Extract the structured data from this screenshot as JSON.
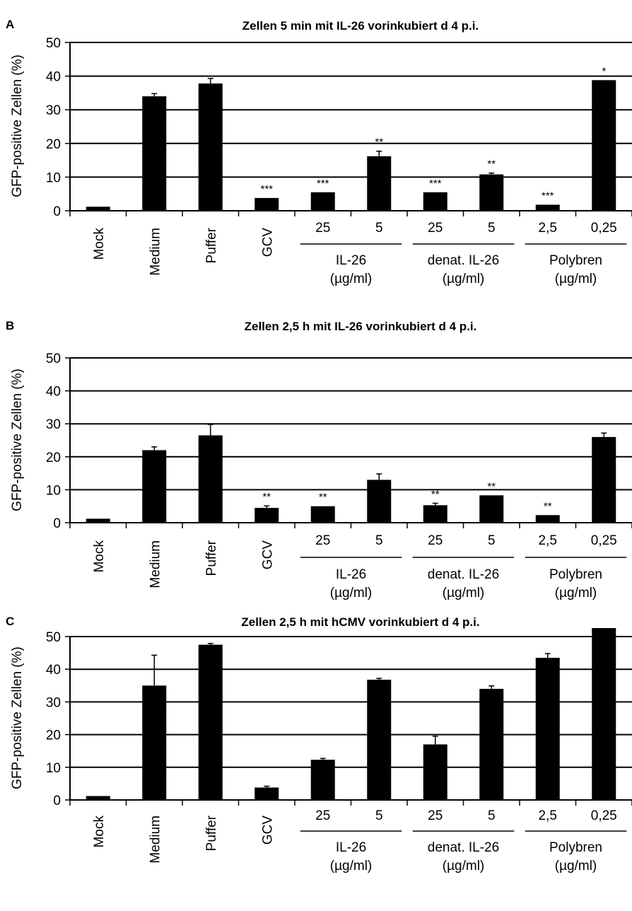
{
  "chart_data": [
    {
      "type": "bar",
      "panel_label": "A",
      "title": "Zellen 5 min mit IL-26 vorinkubiert d 4 p.i.",
      "ylabel": "GFP-positive Zellen (%)",
      "ylim": [
        0,
        50
      ],
      "yticks": [
        0,
        10,
        20,
        30,
        40,
        50
      ],
      "grid": true,
      "categories": [
        "Mock",
        "Medium",
        "Puffer",
        "GCV",
        "25",
        "5",
        "25",
        "5",
        "2,5",
        "0,25"
      ],
      "values": [
        1.2,
        34.0,
        37.8,
        3.8,
        5.5,
        16.2,
        5.5,
        10.8,
        1.8,
        38.8
      ],
      "errors": [
        0,
        0.8,
        1.5,
        0,
        0,
        1.5,
        0,
        0.4,
        0,
        0
      ],
      "significance": [
        "",
        "",
        "",
        "***",
        "***",
        "**",
        "***",
        "**",
        "***",
        "*"
      ],
      "groups": [
        {
          "label": "IL-26",
          "unit": "(µg/ml)",
          "from": 4,
          "to": 5
        },
        {
          "label": "denat. IL-26",
          "unit": "(µg/ml)",
          "from": 6,
          "to": 7
        },
        {
          "label": "Polybren",
          "unit": "(µg/ml)",
          "from": 8,
          "to": 9
        }
      ]
    },
    {
      "type": "bar",
      "panel_label": "B",
      "title": "Zellen 2,5 h mit IL-26 vorinkubiert d 4 p.i.",
      "ylabel": "GFP-positive Zellen (%)",
      "ylim": [
        0,
        50
      ],
      "yticks": [
        0,
        10,
        20,
        30,
        40,
        50
      ],
      "grid": true,
      "categories": [
        "Mock",
        "Medium",
        "Puffer",
        "GCV",
        "25",
        "5",
        "25",
        "5",
        "2,5",
        "0,25"
      ],
      "values": [
        1.2,
        22.0,
        26.5,
        4.5,
        5.0,
        13.0,
        5.3,
        8.3,
        2.3,
        26.0
      ],
      "errors": [
        0,
        1.0,
        3.3,
        0.6,
        0,
        1.8,
        0.6,
        0,
        0,
        1.2
      ],
      "significance": [
        "",
        "",
        "",
        "**",
        "**",
        "",
        "**",
        "**",
        "**",
        ""
      ],
      "groups": [
        {
          "label": "IL-26",
          "unit": "(µg/ml)",
          "from": 4,
          "to": 5
        },
        {
          "label": "denat. IL-26",
          "unit": "(µg/ml)",
          "from": 6,
          "to": 7
        },
        {
          "label": "Polybren",
          "unit": "(µg/ml)",
          "from": 8,
          "to": 9
        }
      ]
    },
    {
      "type": "bar",
      "panel_label": "C",
      "title": "Zellen 2,5 h mit hCMV vorinkubiert d 4 p.i.",
      "ylabel": "GFP-positive Zellen (%)",
      "ylim": [
        0,
        50
      ],
      "yticks": [
        0,
        10,
        20,
        30,
        40,
        50
      ],
      "grid": true,
      "categories": [
        "Mock",
        "Medium",
        "Puffer",
        "GCV",
        "25",
        "5",
        "25",
        "5",
        "2,5",
        "0,25"
      ],
      "values": [
        1.2,
        35.0,
        47.5,
        3.8,
        12.3,
        36.8,
        17.0,
        34.0,
        43.5,
        54.0
      ],
      "errors": [
        0,
        9.3,
        0.4,
        0.4,
        0.4,
        0.4,
        2.5,
        0.9,
        1.3,
        0
      ],
      "significance": [
        "",
        "",
        "",
        "",
        "",
        "",
        "",
        "",
        "",
        ""
      ],
      "groups": [
        {
          "label": "IL-26",
          "unit": "(µg/ml)",
          "from": 4,
          "to": 5
        },
        {
          "label": "denat. IL-26",
          "unit": "(µg/ml)",
          "from": 6,
          "to": 7
        },
        {
          "label": "Polybren",
          "unit": "(µg/ml)",
          "from": 8,
          "to": 9
        }
      ]
    }
  ]
}
